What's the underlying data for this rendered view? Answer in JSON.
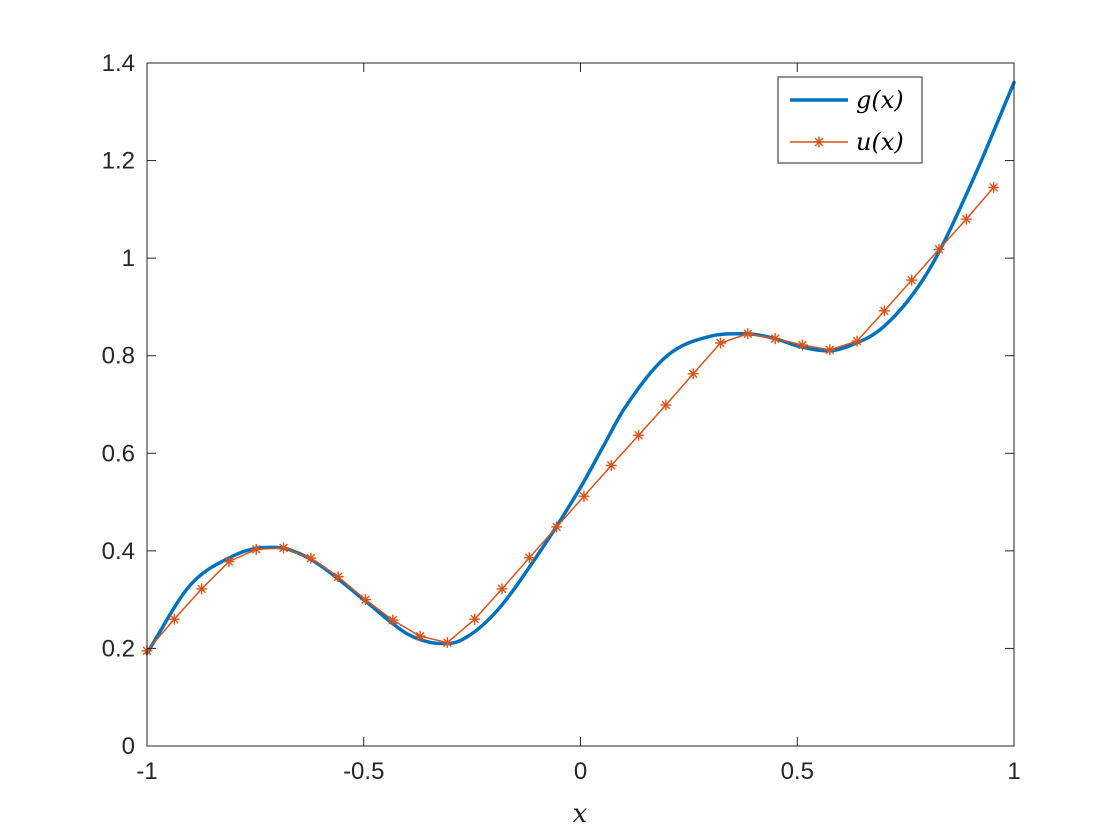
{
  "chart_data": {
    "type": "line",
    "title": "",
    "xlabel": "x",
    "ylabel": "",
    "xlim": [
      -1,
      1
    ],
    "ylim": [
      0,
      1.4
    ],
    "xticks": [
      -1,
      -0.5,
      0,
      0.5,
      1
    ],
    "xtick_labels": [
      "-1",
      "-0.5",
      "0",
      "0.5",
      "1"
    ],
    "yticks": [
      0,
      0.2,
      0.4,
      0.6,
      0.8,
      1,
      1.2,
      1.4
    ],
    "ytick_labels": [
      "0",
      "0.2",
      "0.4",
      "0.6",
      "0.8",
      "1",
      "1.2",
      "1.4"
    ],
    "grid": false,
    "legend_position": "top-right",
    "series": [
      {
        "name": "g(x)",
        "color": "#0072BD",
        "marker": "none",
        "x": [
          -1.0,
          -0.9,
          -0.8,
          -0.75,
          -0.7,
          -0.65,
          -0.6,
          -0.5,
          -0.4,
          -0.35,
          -0.32,
          -0.28,
          -0.2,
          -0.1,
          0.0,
          0.05,
          0.1,
          0.2,
          0.3,
          0.38,
          0.45,
          0.5,
          0.57,
          0.62,
          0.7,
          0.8,
          0.9,
          1.0
        ],
        "y": [
          0.19,
          0.33,
          0.39,
          0.405,
          0.407,
          0.395,
          0.37,
          0.3,
          0.23,
          0.213,
          0.21,
          0.215,
          0.27,
          0.39,
          0.53,
          0.61,
          0.69,
          0.8,
          0.84,
          0.845,
          0.835,
          0.82,
          0.81,
          0.82,
          0.86,
          0.97,
          1.15,
          1.36
        ]
      },
      {
        "name": "u(x)",
        "color": "#D95319",
        "marker": "*",
        "x": [
          -1.0,
          -0.937,
          -0.874,
          -0.811,
          -0.748,
          -0.685,
          -0.622,
          -0.559,
          -0.496,
          -0.433,
          -0.37,
          -0.307,
          -0.244,
          -0.181,
          -0.118,
          -0.055,
          0.008,
          0.071,
          0.134,
          0.197,
          0.26,
          0.323,
          0.386,
          0.449,
          0.512,
          0.575,
          0.638,
          0.701,
          0.764,
          0.827,
          0.89,
          0.953
        ],
        "y": [
          0.195,
          0.26,
          0.322,
          0.378,
          0.403,
          0.406,
          0.385,
          0.347,
          0.3,
          0.258,
          0.225,
          0.212,
          0.26,
          0.322,
          0.386,
          0.449,
          0.512,
          0.575,
          0.637,
          0.699,
          0.763,
          0.826,
          0.845,
          0.835,
          0.822,
          0.812,
          0.83,
          0.892,
          0.955,
          1.018,
          1.08,
          1.145
        ]
      }
    ]
  }
}
